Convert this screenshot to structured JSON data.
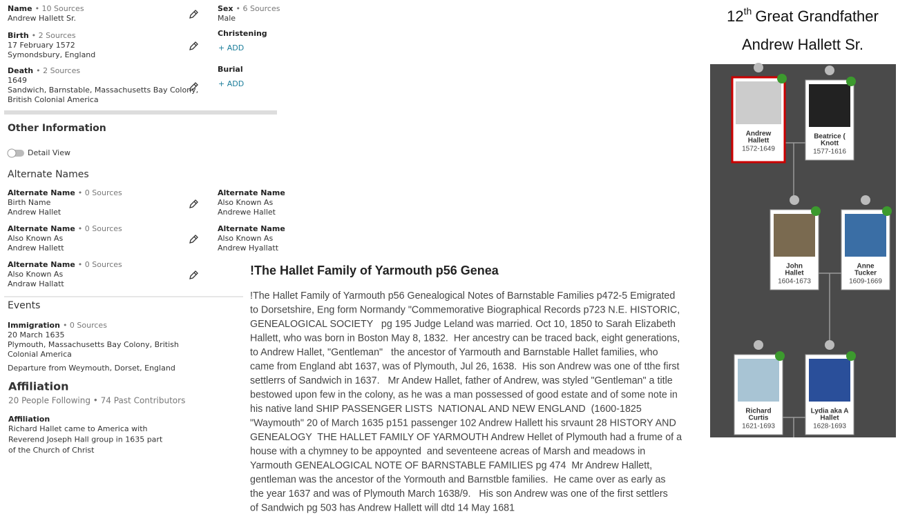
{
  "vitals": {
    "name": {
      "label": "Name",
      "sources": "• 10 Sources",
      "lines": [
        "Andrew Hallett Sr."
      ]
    },
    "birth": {
      "label": "Birth",
      "sources": "• 2 Sources",
      "lines": [
        "17 February 1572",
        "Symondsbury, England"
      ]
    },
    "death": {
      "label": "Death",
      "sources": "• 2 Sources",
      "lines": [
        "1649",
        "Sandwich, Barnstable, Massachusetts Bay Colony,",
        "British Colonial America"
      ]
    },
    "sex": {
      "label": "Sex",
      "sources": "• 6 Sources",
      "lines": [
        "Male"
      ]
    },
    "christening": {
      "label": "Christening",
      "action": "+ ADD"
    },
    "burial": {
      "label": "Burial",
      "action": "+ ADD"
    }
  },
  "other_information": {
    "title": "Other Information",
    "toggle_label": "Detail View"
  },
  "alternate_names": {
    "title": "Alternate Names",
    "items": [
      {
        "label": "Alternate Name",
        "sources": "• 0 Sources",
        "lines": [
          "Birth Name",
          "Andrew Hallet"
        ]
      },
      {
        "label": "Alternate Name",
        "sources": "• 0 Sources",
        "lines": [
          "Also Known As",
          "Andrew Hallett"
        ]
      },
      {
        "label": "Alternate Name",
        "sources": "• 0 Sources",
        "lines": [
          "Also Known As",
          "Andraw Hallatt"
        ]
      },
      {
        "label": "Alternate Name",
        "lines": [
          "Also Known As",
          "Andrewe Hallet"
        ]
      },
      {
        "label": "Alternate Name",
        "lines": [
          "Also Known As",
          "Andrew Hyallatt"
        ]
      }
    ]
  },
  "events": {
    "title": "Events",
    "items": [
      {
        "label": "Immigration",
        "sources": "• 0 Sources",
        "lines": [
          "20 March 1635",
          "Plymouth, Massachusetts Bay Colony, British",
          "Colonial America"
        ],
        "note": "Departure from Weymouth, Dorset, England"
      }
    ]
  },
  "affiliation": {
    "title": "Affiliation",
    "stats": "20 People Following • 74 Past Contributors",
    "item": {
      "label": "Affiliation",
      "lines": [
        "Richard Hallet came to America with",
        "Reverend Joseph Hall group in 1635 part",
        "of the Church of Christ"
      ]
    }
  },
  "story": {
    "title": "!The Hallet Family of Yarmouth p56 Genea",
    "lines": [
      "!The Hallet Family of Yarmouth p56 Genealogical Notes of Barnstable Families p472-5 Emigrated",
      "to Dorsetshire, Eng form Normandy \"Commemorative Biographical Records p723 N.E. HISTORIC,",
      "GENEALOGICAL SOCIETY   pg 195 Judge Leland was married. Oct 10, 1850 to Sarah Elizabeth",
      "Hallett, who was born in Boston May 8, 1832.  Her ancestry can be traced back, eight generations,",
      "to Andrew Hallet, \"Gentleman\"   the ancestor of Yarmouth and Barnstable Hallet families, who",
      "came from England abt 1637, was of Plymouth, Jul 26, 1638.  His son Andrew was one of tthe first",
      "settlerrs of Sandwich in 1637.   Mr Andew Hallet, father of Andrew, was styled \"Gentleman\" a title",
      "bestowed upon few in the colony, as he was a man possessed of good estate and of some note in",
      "his native land SHIP PASSENGER LISTS  NATIONAL AND NEW ENGLAND  (1600-1825",
      "\"Waymouth\" 20 of March 1635 p151 passenger 102 Andrew Hallett his srvaunt 28 HISTORY AND",
      "GENEALOGY  THE HALLET FAMILY OF YARMOUTH Andrew Hellet of Plymouth had a frume of a",
      "house with a chymney to be appoynted  and seventeene acreas of Marsh and meadows in",
      "Yarmouth GENEALOGICAL NOTE OF BARNSTABLE FAMILIES pg 474  Mr Andrew Hallett,",
      "gentleman was the ancestor of the Yormouth and Barnstble families.  He came over as early as",
      "the year 1637 and was of Plymouth March 1638/9.   His son Andrew was one of the first settlers",
      "of Sandwich pg 503 has Andrew Hallett will dtd 14 May 1681"
    ]
  },
  "profile": {
    "generation": {
      "number": "12",
      "suffix": "th",
      "text": "Great Grandfather"
    },
    "name": "Andrew Hallett Sr."
  },
  "tree": {
    "nodes": [
      {
        "name_lines": [
          "Andrew",
          "Hallett"
        ],
        "years": "1572-1649"
      },
      {
        "name_lines": [
          "Beatrice (",
          "Knott"
        ],
        "years": "1577-1616"
      },
      {
        "name_lines": [
          "John",
          "Hallet"
        ],
        "years": "1604-1673"
      },
      {
        "name_lines": [
          "Anne",
          "Tucker"
        ],
        "years": "1609-1669"
      },
      {
        "name_lines": [
          "Richard",
          "Curtis"
        ],
        "years": "1621-1693"
      },
      {
        "name_lines": [
          "Lydia aka A",
          "Hallet"
        ],
        "years": "1628-1693"
      }
    ]
  }
}
